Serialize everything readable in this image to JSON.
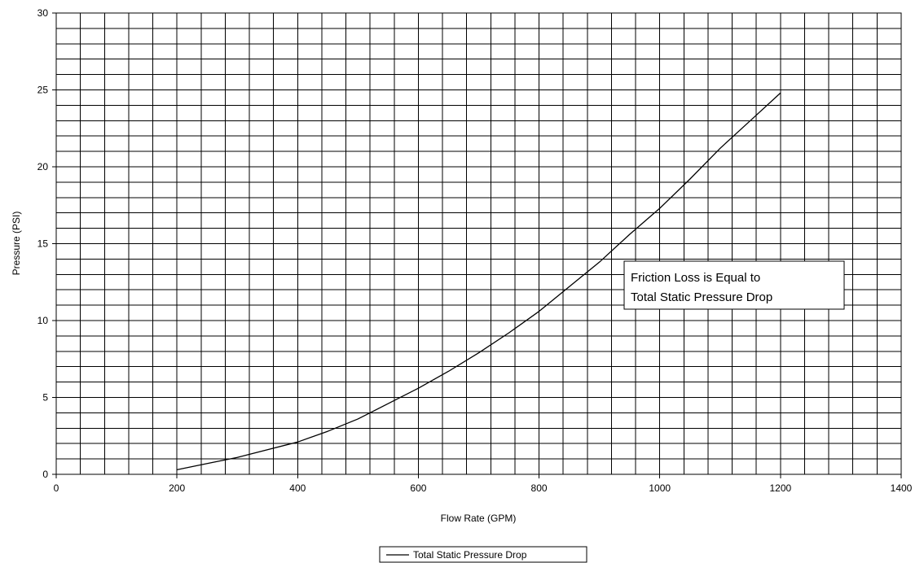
{
  "chart_data": {
    "type": "line",
    "title": "",
    "xlabel": "Flow Rate (GPM)",
    "ylabel": "Pressure (PSI)",
    "xlim": [
      0,
      1400
    ],
    "ylim": [
      0,
      30
    ],
    "x_ticks": [
      0,
      200,
      400,
      600,
      800,
      1000,
      1200,
      1400
    ],
    "y_ticks": [
      0,
      5,
      10,
      15,
      20,
      25,
      30
    ],
    "x_tick_labels": [
      "0",
      "200",
      "400",
      "600",
      "800",
      "1000",
      "1200",
      "1400"
    ],
    "y_tick_labels": [
      "0",
      "5",
      "10",
      "15",
      "20",
      "25",
      "30"
    ],
    "grid": true,
    "grid_x_step": 40,
    "grid_y_step": 1,
    "legend_position": "bottom-center",
    "series": [
      {
        "name": "Total Static Pressure Drop",
        "color": "#000000",
        "x": [
          200,
          250,
          300,
          350,
          400,
          450,
          500,
          550,
          600,
          650,
          700,
          750,
          800,
          850,
          900,
          950,
          1000,
          1050,
          1100,
          1150,
          1200
        ],
        "y": [
          0.3,
          0.7,
          1.1,
          1.6,
          2.1,
          2.8,
          3.6,
          4.6,
          5.6,
          6.7,
          7.9,
          9.2,
          10.6,
          12.2,
          13.8,
          15.6,
          17.3,
          19.2,
          21.2,
          23.0,
          24.8
        ]
      }
    ],
    "annotations": [
      {
        "lines": [
          "Friction Loss is Equal to",
          "Total Static Pressure Drop"
        ]
      }
    ]
  }
}
